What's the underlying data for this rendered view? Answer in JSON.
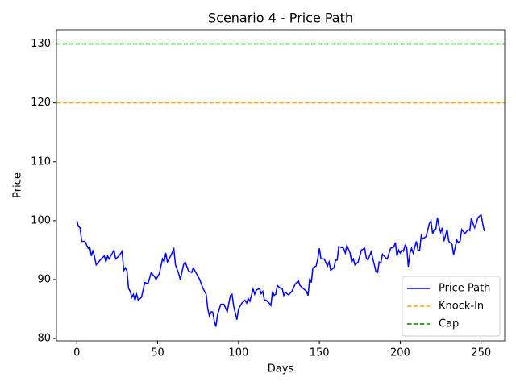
{
  "chart_data": {
    "type": "line",
    "title": "Scenario 4 - Price Path",
    "xlabel": "Days",
    "ylabel": "Price",
    "x": [
      0,
      1,
      2,
      3,
      5,
      7,
      8,
      9,
      10,
      12,
      15,
      17,
      18,
      19,
      20,
      22,
      23,
      24,
      26,
      28,
      29,
      30,
      31,
      32,
      33,
      34,
      35,
      36,
      37,
      38,
      40,
      42,
      44,
      46,
      48,
      49,
      51,
      53,
      54,
      55,
      56,
      58,
      60,
      61,
      63,
      64,
      66,
      67,
      69,
      71,
      72,
      74,
      76,
      78,
      80,
      81,
      82,
      83,
      84,
      85,
      86,
      87,
      89,
      91,
      93,
      94,
      95,
      96,
      97,
      99,
      100,
      102,
      104,
      105,
      106,
      107,
      109,
      110,
      111,
      113,
      114,
      115,
      116,
      117,
      119,
      120,
      121,
      122,
      123,
      124,
      126,
      127,
      128,
      129,
      131,
      133,
      135,
      137,
      138,
      140,
      142,
      143,
      144,
      145,
      146,
      148,
      149,
      150,
      151,
      153,
      155,
      156,
      157,
      159,
      160,
      161,
      162,
      165,
      166,
      167,
      169,
      170,
      171,
      172,
      174,
      176,
      178,
      179,
      180,
      182,
      184,
      185,
      186,
      187,
      188,
      189,
      191,
      192,
      194,
      196,
      197,
      198,
      199,
      200,
      201,
      202,
      203,
      204,
      205,
      206,
      207,
      208,
      210,
      211,
      212,
      213,
      214,
      216,
      218,
      219,
      220,
      221,
      222,
      223,
      224,
      225,
      226,
      227,
      228,
      229,
      230,
      232,
      233,
      234,
      235,
      236,
      237,
      238,
      240,
      242,
      243,
      244,
      245,
      246,
      247,
      248,
      250,
      251,
      252
    ],
    "series": [
      {
        "name": "Price Path",
        "color": "#0000ff",
        "values": [
          100,
          99,
          98.8,
          96.5,
          96.5,
          95.3,
          95.5,
          94,
          95,
          92.5,
          93.5,
          94,
          93,
          94,
          93.5,
          94.5,
          95,
          93.5,
          94,
          94.8,
          91.5,
          92,
          91.5,
          88.5,
          88,
          87,
          87.5,
          86.5,
          87.5,
          86.5,
          87,
          89.5,
          89.3,
          91.2,
          90.5,
          90,
          91,
          93.5,
          93,
          94.5,
          93,
          94,
          95.2,
          92.5,
          91,
          90,
          92.5,
          93,
          91.5,
          91.2,
          92,
          91,
          90,
          88.5,
          87.5,
          85,
          83.8,
          84.5,
          84.5,
          83,
          82,
          84,
          85.8,
          85.8,
          84.5,
          86,
          87.3,
          87.5,
          85.5,
          83.2,
          85,
          86,
          86.5,
          86,
          86.8,
          86.3,
          88.4,
          87.5,
          88.2,
          88.5,
          87.6,
          88,
          86.5,
          86.5,
          86,
          85.6,
          88,
          87.3,
          87.5,
          89,
          88.5,
          88.5,
          87.3,
          87.8,
          87.4,
          88,
          89.2,
          89.8,
          89,
          88.5,
          88,
          87.3,
          90.2,
          89.5,
          92,
          92.3,
          93.5,
          95.3,
          93.5,
          93.5,
          92.3,
          93,
          91.6,
          92,
          93.3,
          93.3,
          95.6,
          95.3,
          94.5,
          95.8,
          94.5,
          93,
          93.5,
          92.5,
          93,
          95,
          95.3,
          93.7,
          93.3,
          94.7,
          92.5,
          91.3,
          91.2,
          93,
          92.8,
          94.3,
          93.7,
          93.5,
          95.3,
          95.5,
          96.3,
          94,
          95,
          94.5,
          95,
          94.8,
          95.8,
          95.5,
          92.2,
          94.5,
          95.3,
          94.5,
          96.5,
          95,
          95,
          97.5,
          96.9,
          97.3,
          99.5,
          100,
          97.8,
          98.5,
          98.5,
          100.5,
          99,
          98,
          98.8,
          96.5,
          97.5,
          98.5,
          96.5,
          96,
          94.2,
          95.5,
          96.7,
          96.3,
          96.5,
          98.5,
          97.8,
          98.5,
          98.3,
          100.5,
          99.5,
          98.8,
          99.5,
          100.5,
          101,
          99.5,
          98.2
        ]
      }
    ],
    "reference_lines": [
      {
        "name": "Knock-In",
        "color": "#ffa500",
        "value": 120
      },
      {
        "name": "Cap",
        "color": "#008000",
        "value": 130
      }
    ],
    "xlim": [
      -12.6,
      264.6
    ],
    "ylim": [
      79.6,
      132.4
    ],
    "xticks": [
      0,
      50,
      100,
      150,
      200,
      250
    ],
    "yticks": [
      80,
      90,
      100,
      110,
      120,
      130
    ],
    "legend": "lower right"
  }
}
